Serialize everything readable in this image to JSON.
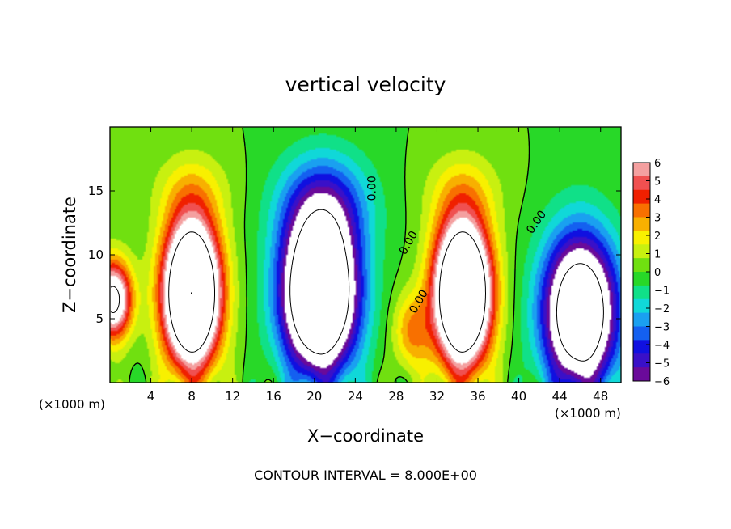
{
  "chart_data": {
    "type": "heatmap",
    "title": "vertical velocity",
    "xlabel": "X−coordinate",
    "ylabel": "Z−coordinate",
    "x_unit_left": "(×1000 m)",
    "x_unit_right": "(×1000 m)",
    "xlim": [
      0,
      50
    ],
    "ylim": [
      0,
      20
    ],
    "x_ticks": [
      4,
      8,
      12,
      16,
      20,
      24,
      28,
      32,
      36,
      40,
      44,
      48
    ],
    "y_ticks": [
      5,
      10,
      15
    ],
    "colorbar": {
      "range": [
        -6,
        6
      ],
      "ticks": [
        "6",
        "5",
        "4",
        "3",
        "2",
        "1",
        "0",
        "−1",
        "−2",
        "−3",
        "−4",
        "−5",
        "−6"
      ],
      "colors": [
        "#6a0a9a",
        "#3a10c8",
        "#1010e0",
        "#1460f0",
        "#1aa0f0",
        "#10d8d8",
        "#10e088",
        "#28d828",
        "#70e010",
        "#c8f010",
        "#f8f000",
        "#f8b000",
        "#f87000",
        "#f02000",
        "#f05050",
        "#f4a0a0"
      ]
    },
    "saturated_color": "#ffffff",
    "contour_labels": [
      "0.00",
      "0.00",
      "0.00",
      "0.00"
    ],
    "contour_interval": "CONTOUR INTERVAL = 8.000E+00",
    "grid": false,
    "features": [
      {
        "type": "updraft",
        "x": 8,
        "z": 7,
        "w": 16
      },
      {
        "type": "updraft",
        "x": 34.5,
        "z": 7,
        "w": 16
      },
      {
        "type": "updraft",
        "x": 0.3,
        "z": 6.5,
        "w": 9
      },
      {
        "type": "downdraft",
        "x": 20.5,
        "z": 7,
        "w": -15
      },
      {
        "type": "downdraft",
        "x": 46,
        "z": 5.5,
        "w": -12
      },
      {
        "type": "updraft",
        "x": 29.5,
        "z": 4,
        "w": 3
      }
    ]
  }
}
